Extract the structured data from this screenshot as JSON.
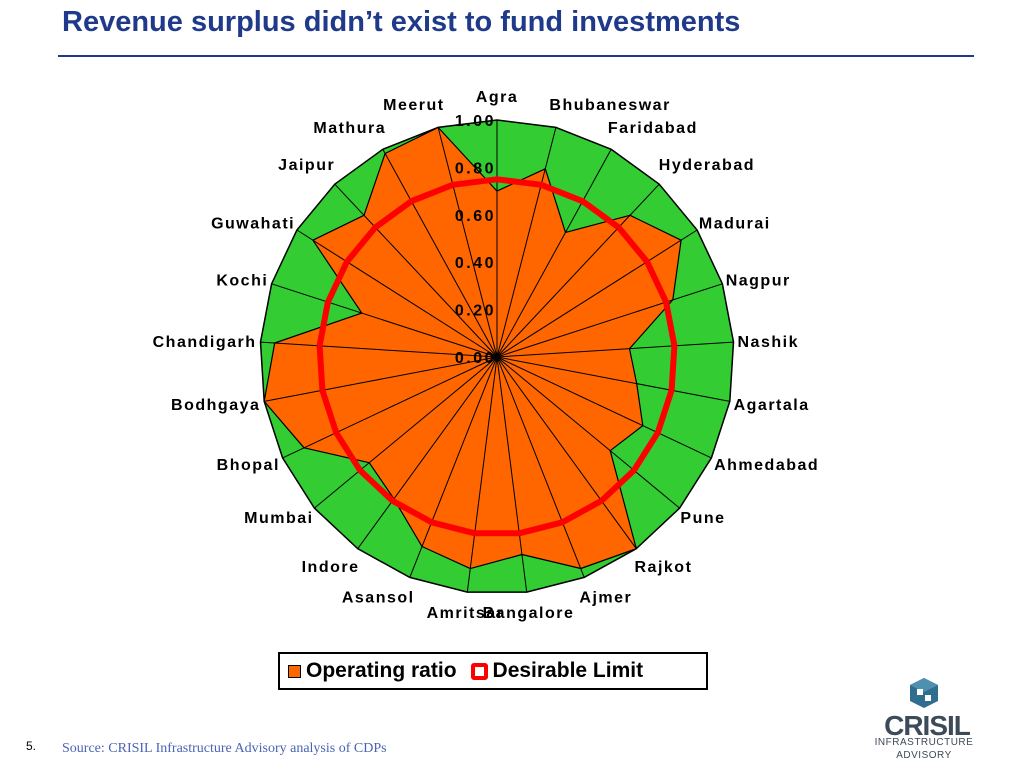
{
  "slide": {
    "title": "Revenue surplus didn’t exist to fund investments",
    "page_number": "5.",
    "source": "Source: CRISIL Infrastructure Advisory analysis of CDPs"
  },
  "legend": {
    "operating_ratio_label": "Operating ratio",
    "desirable_limit_label": "Desirable Limit"
  },
  "logo": {
    "wordmark": "CRISIL",
    "line1": "INFRASTRUCTURE",
    "line2": "ADVISORY"
  },
  "colors": {
    "title": "#1f3a8a",
    "operating_ratio_fill": "#ff6600",
    "outer_band": "#33cc33",
    "desirable_limit": "#ff0000",
    "source_text": "#4a63b5",
    "logo_icon": "#2f6e8e"
  },
  "chart_data": {
    "type": "radar",
    "title": "",
    "axis_ticks": [
      "0.00",
      "0.20",
      "0.40",
      "0.60",
      "0.80",
      "1.00"
    ],
    "rlim": [
      0,
      1
    ],
    "categories": [
      "Agra",
      "Bhubaneswar",
      "Faridabad",
      "Hyderabad",
      "Madurai",
      "Nagpur",
      "Nashik",
      "Agartala",
      "Ahmedabad",
      "Pune",
      "Rajkot",
      "Ajmer",
      "Bangalore",
      "Amritsar",
      "Asansol",
      "Indore",
      "Mumbai",
      "Bhopal",
      "Bodhgaya",
      "Chandigarh",
      "Kochi",
      "Guwahati",
      "Jaipur",
      "Mathura",
      "Meerut"
    ],
    "series": [
      {
        "name": "Operating ratio",
        "values": [
          0.7,
          0.82,
          0.6,
          0.82,
          0.92,
          0.78,
          0.56,
          0.6,
          0.68,
          0.62,
          1.0,
          0.96,
          0.84,
          0.9,
          0.86,
          0.74,
          0.7,
          0.9,
          1.0,
          0.94,
          0.6,
          0.92,
          0.82,
          0.98,
          1.0
        ]
      },
      {
        "name": "Desirable Limit",
        "values": [
          0.75,
          0.75,
          0.75,
          0.75,
          0.75,
          0.75,
          0.75,
          0.75,
          0.75,
          0.75,
          0.75,
          0.75,
          0.75,
          0.75,
          0.75,
          0.75,
          0.75,
          0.75,
          0.75,
          0.75,
          0.75,
          0.75,
          0.75,
          0.75,
          0.75
        ]
      }
    ],
    "legend_position": "bottom"
  }
}
